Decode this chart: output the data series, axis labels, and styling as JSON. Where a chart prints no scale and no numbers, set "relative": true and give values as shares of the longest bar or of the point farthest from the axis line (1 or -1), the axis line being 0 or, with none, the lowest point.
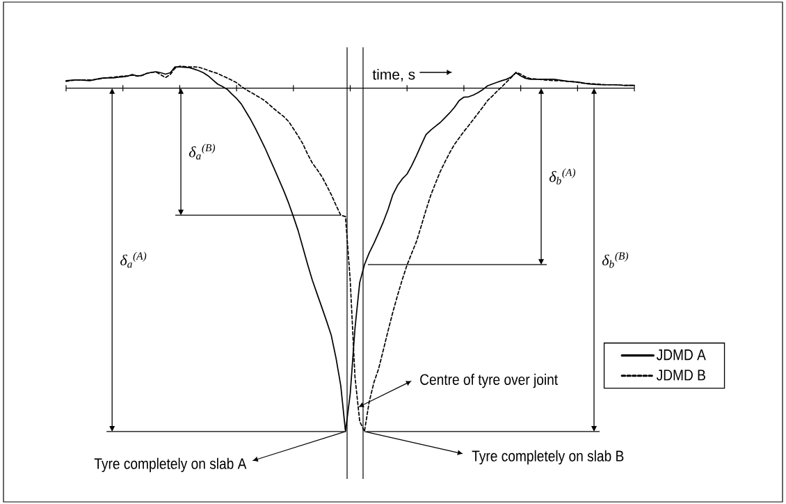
{
  "chart_data": {
    "type": "line",
    "relative": true,
    "xlabel": "time, s",
    "legend": "right",
    "categories": [
      null,
      null,
      null,
      null,
      null,
      null,
      null,
      null,
      null,
      null,
      null,
      null,
      null,
      null,
      null,
      null,
      null,
      null,
      null,
      null,
      null,
      null,
      null,
      null,
      null,
      null,
      null,
      null,
      null,
      null,
      null,
      null,
      null,
      null,
      null,
      null,
      null,
      null,
      null,
      null,
      null,
      null,
      null,
      null,
      null,
      null,
      null,
      null,
      null,
      null,
      null,
      null,
      null,
      null,
      null,
      null,
      null,
      null,
      null,
      null,
      null,
      null,
      null,
      null,
      null,
      null,
      null,
      null,
      null,
      null,
      null,
      null,
      null,
      null,
      null,
      null,
      null,
      null,
      null,
      null,
      null,
      null,
      null,
      null,
      null,
      null,
      null,
      null,
      null,
      null,
      null,
      null,
      null,
      null,
      null,
      null,
      null,
      null,
      null,
      null,
      null,
      null,
      null,
      null,
      null,
      null,
      null,
      null,
      null,
      null,
      null,
      null,
      null,
      null,
      null,
      null,
      null,
      null,
      null,
      null,
      null
    ],
    "series": [
      {
        "name": "JDMD A",
        "color": "#000000",
        "line_style": "solid",
        "values": [
          0.022,
          0.023,
          0.024,
          0.024,
          0.023,
          0.022,
          0.025,
          0.028,
          0.03,
          0.03,
          0.03,
          0.032,
          0.033,
          0.035,
          0.04,
          0.035,
          0.037,
          0.043,
          0.046,
          0.048,
          0.045,
          0.041,
          0.045,
          0.062,
          0.062,
          0.061,
          0.06,
          0.056,
          0.051,
          0.045,
          0.036,
          0.024,
          0.012,
          0.005,
          -0.003,
          -0.017,
          -0.03,
          -0.046,
          -0.069,
          -0.092,
          -0.118,
          -0.146,
          -0.174,
          -0.205,
          -0.236,
          -0.268,
          -0.3,
          -0.335,
          -0.374,
          -0.415,
          -0.464,
          -0.513,
          -0.559,
          -0.599,
          -0.638,
          -0.678,
          -0.72,
          -0.786,
          -0.866,
          -1,
          -0.89,
          -0.7,
          -0.566,
          -0.514,
          -0.48,
          -0.452,
          -0.421,
          -0.389,
          -0.353,
          -0.31,
          -0.283,
          -0.264,
          -0.25,
          -0.225,
          -0.196,
          -0.165,
          -0.135,
          -0.122,
          -0.111,
          -0.1,
          -0.086,
          -0.072,
          -0.056,
          -0.036,
          -0.026,
          -0.025,
          -0.02,
          -0.013,
          -0.004,
          0.007,
          0.012,
          0.017,
          0.022,
          0.026,
          0.033,
          0.045,
          0.036,
          0.029,
          0.026,
          0.026,
          0.026,
          0.026,
          0.026,
          0.026,
          0.024,
          0.022,
          0.02,
          0.019,
          0.018,
          0.016,
          0.013,
          0.012,
          0.011,
          0.01,
          0.01,
          0.01,
          0.01,
          0.009,
          0.008,
          0.008,
          0.008
        ]
      },
      {
        "name": "JDMD B",
        "color": "#000000",
        "line_style": "dashed",
        "values": [
          0.02,
          0.022,
          0.024,
          0.024,
          0.024,
          0.024,
          0.025,
          0.027,
          0.029,
          0.031,
          0.032,
          0.034,
          0.035,
          0.036,
          0.038,
          0.036,
          0.037,
          0.043,
          0.046,
          0.047,
          0.039,
          0.031,
          0.04,
          0.058,
          0.064,
          0.063,
          0.062,
          0.062,
          0.061,
          0.057,
          0.052,
          0.047,
          0.043,
          0.036,
          0.03,
          0.023,
          0.016,
          0.005,
          -0.004,
          -0.012,
          -0.02,
          -0.028,
          -0.037,
          -0.049,
          -0.061,
          -0.072,
          -0.083,
          -0.097,
          -0.118,
          -0.139,
          -0.162,
          -0.192,
          -0.218,
          -0.237,
          -0.257,
          -0.283,
          -0.31,
          -0.341,
          -0.37,
          -0.374,
          -0.56,
          -0.84,
          -0.97,
          -1,
          -0.914,
          -0.857,
          -0.817,
          -0.762,
          -0.706,
          -0.652,
          -0.603,
          -0.557,
          -0.515,
          -0.48,
          -0.446,
          -0.401,
          -0.355,
          -0.312,
          -0.277,
          -0.243,
          -0.215,
          -0.188,
          -0.164,
          -0.145,
          -0.126,
          -0.109,
          -0.091,
          -0.073,
          -0.055,
          -0.036,
          -0.023,
          -0.009,
          0.004,
          0.018,
          0.031,
          0.046,
          0.041,
          0.033,
          0.028,
          0.027,
          0.026,
          0.024,
          0.023,
          0.022,
          0.022,
          0.021,
          0.02,
          0.019,
          0.017,
          0.015,
          0.014,
          0.013,
          0.012,
          0.011,
          0.01,
          0.01,
          0.01,
          0.009,
          0.008,
          0.008,
          0.008
        ]
      }
    ],
    "annotations": [
      "δ$_{a}$$^{(B)}$",
      "δ$_{a}$$^{(A)}$",
      "δ$_{b}$$^{(A)}$",
      "δ$_{b}$$^{(B)}$",
      "Centre of tyre over joint",
      "Tyre completely on slab A",
      "Tyre completely on slab B"
    ]
  }
}
